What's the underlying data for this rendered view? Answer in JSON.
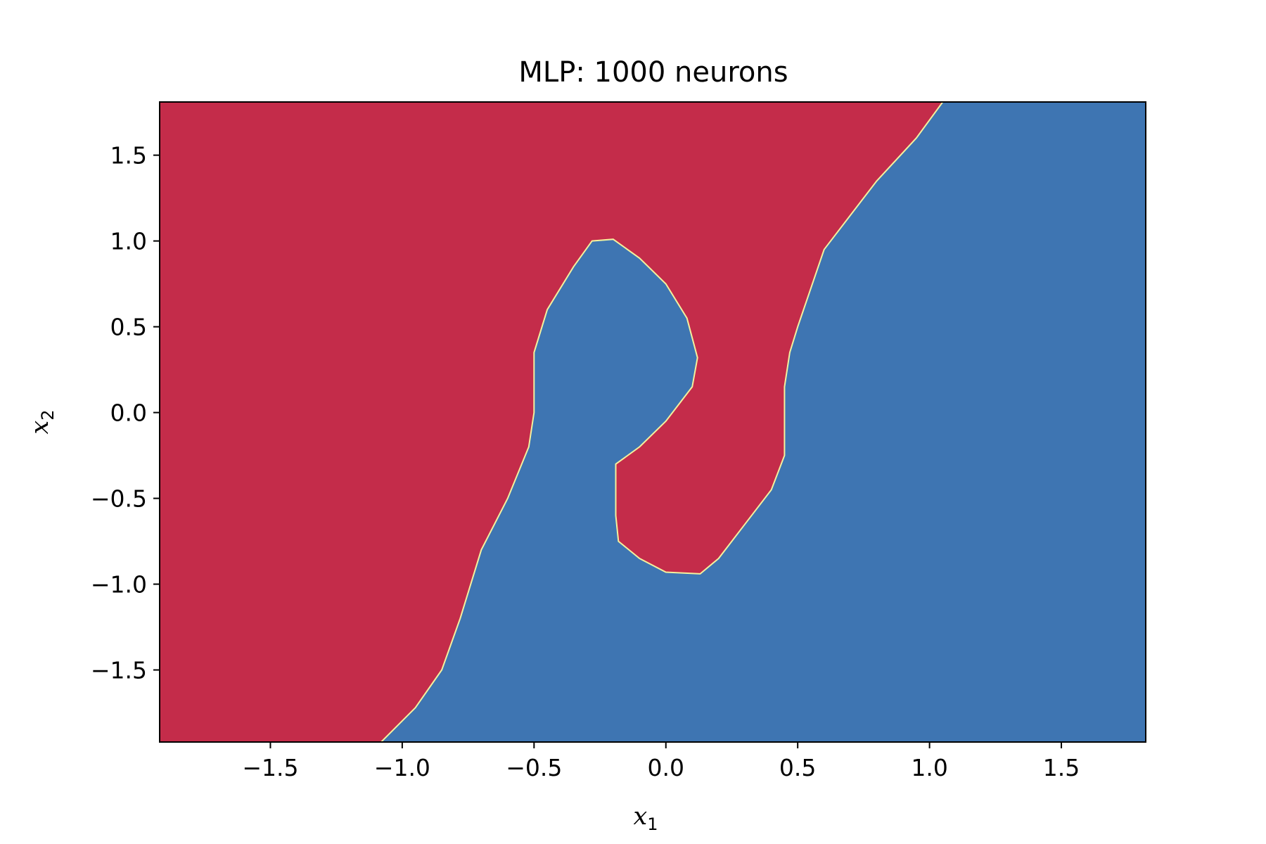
{
  "chart_data": {
    "type": "heatmap",
    "title": "MLP: 1000 neurons",
    "xlabel": {
      "base": "x",
      "sub": "1"
    },
    "ylabel": {
      "base": "x",
      "sub": "2"
    },
    "xlim": [
      -1.92,
      1.82
    ],
    "ylim": [
      -1.92,
      1.81
    ],
    "xticks": [
      {
        "value": -1.5,
        "label": "−1.5"
      },
      {
        "value": -1.0,
        "label": "−1.0"
      },
      {
        "value": -0.5,
        "label": "−0.5"
      },
      {
        "value": 0.0,
        "label": "0.0"
      },
      {
        "value": 0.5,
        "label": "0.5"
      },
      {
        "value": 1.0,
        "label": "1.0"
      },
      {
        "value": 1.5,
        "label": "1.5"
      }
    ],
    "yticks": [
      {
        "value": 1.5,
        "label": "1.5"
      },
      {
        "value": 1.0,
        "label": "1.0"
      },
      {
        "value": 0.5,
        "label": "0.5"
      },
      {
        "value": 0.0,
        "label": "0.0"
      },
      {
        "value": -0.5,
        "label": "−0.5"
      },
      {
        "value": -1.0,
        "label": "−1.0"
      },
      {
        "value": -1.5,
        "label": "−1.5"
      }
    ],
    "grid": false,
    "regions": [
      {
        "class": "red",
        "color": "#c42c4a",
        "boundary": [
          [
            -1.92,
            1.81
          ],
          [
            1.05,
            1.81
          ],
          [
            0.95,
            1.6
          ],
          [
            0.8,
            1.35
          ],
          [
            0.7,
            1.15
          ],
          [
            0.6,
            0.95
          ],
          [
            0.5,
            0.5
          ],
          [
            0.47,
            0.35
          ],
          [
            0.45,
            0.15
          ],
          [
            0.45,
            -0.25
          ],
          [
            0.4,
            -0.45
          ],
          [
            0.3,
            -0.65
          ],
          [
            0.2,
            -0.85
          ],
          [
            0.13,
            -0.94
          ],
          [
            0.0,
            -0.93
          ],
          [
            -0.1,
            -0.85
          ],
          [
            -0.18,
            -0.75
          ],
          [
            -0.19,
            -0.6
          ],
          [
            -0.19,
            -0.3
          ],
          [
            -0.1,
            -0.2
          ],
          [
            0.0,
            -0.05
          ],
          [
            0.05,
            0.05
          ],
          [
            0.1,
            0.15
          ],
          [
            0.12,
            0.32
          ],
          [
            0.08,
            0.55
          ],
          [
            0.0,
            0.75
          ],
          [
            -0.1,
            0.9
          ],
          [
            -0.2,
            1.01
          ],
          [
            -0.28,
            1.0
          ],
          [
            -0.35,
            0.85
          ],
          [
            -0.45,
            0.6
          ],
          [
            -0.5,
            0.35
          ],
          [
            -0.5,
            0.0
          ],
          [
            -0.52,
            -0.2
          ],
          [
            -0.6,
            -0.5
          ],
          [
            -0.7,
            -0.8
          ],
          [
            -0.78,
            -1.2
          ],
          [
            -0.85,
            -1.5
          ],
          [
            -0.95,
            -1.72
          ],
          [
            -1.08,
            -1.92
          ],
          [
            -1.92,
            -1.92
          ]
        ]
      },
      {
        "class": "blue",
        "color": "#3e75b2"
      }
    ],
    "boundary_color": "#f3f19e"
  }
}
